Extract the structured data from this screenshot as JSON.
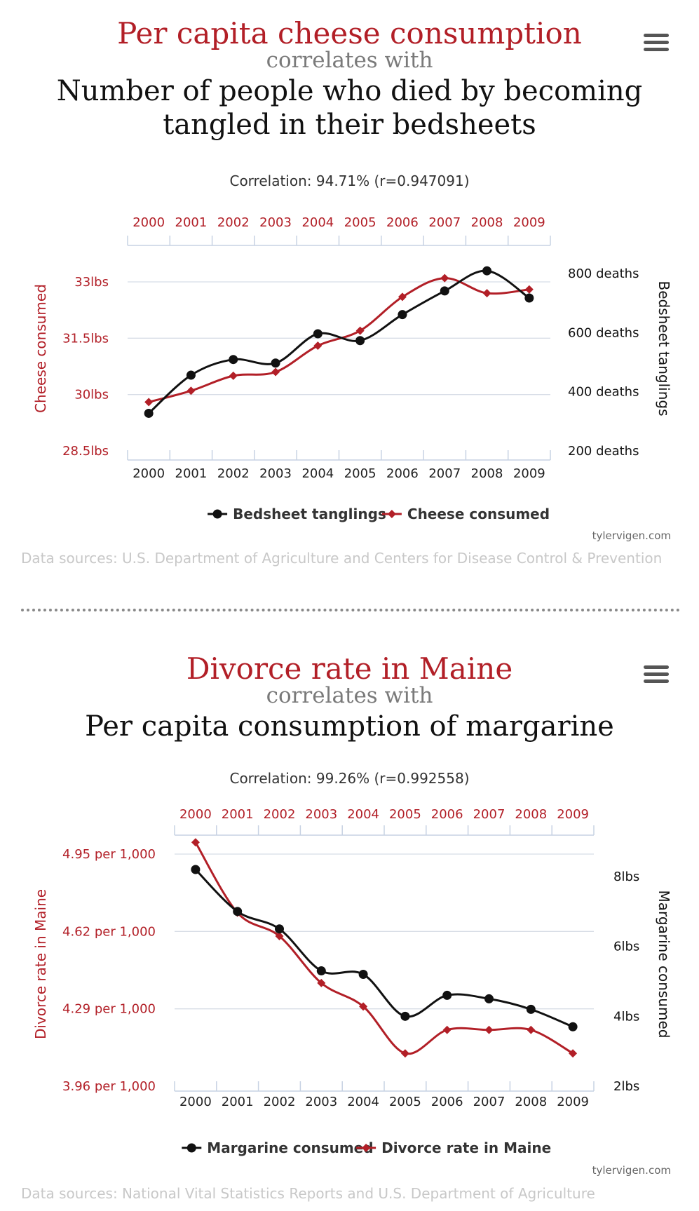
{
  "charts": [
    {
      "title_var1": "Per capita cheese consumption",
      "title_mid": "correlates with",
      "title_var2_line1": "Number of people who died by becoming",
      "title_var2_line2": "tangled in their bedsheets",
      "correlation": "Correlation: 94.71% (r=0.947091)",
      "credit": "tylervigen.com",
      "sources": "Data sources: U.S. Department of Agriculture and Centers for Disease Control & Prevention",
      "menu_icon": "hamburger-menu-icon",
      "colors": {
        "red": "#b21f27",
        "black": "#111111"
      },
      "chart_data": {
        "type": "line",
        "x": [
          2000,
          2001,
          2002,
          2003,
          2004,
          2005,
          2006,
          2007,
          2008,
          2009
        ],
        "series": [
          {
            "name": "Bedsheet tanglings",
            "axis": "right",
            "marker": "circle",
            "color": "#111111",
            "values": [
              327,
              456,
              509,
              497,
              596,
              573,
              661,
              741,
              809,
              717
            ]
          },
          {
            "name": "Cheese consumed",
            "axis": "left",
            "marker": "diamond",
            "color": "#b21f27",
            "values": [
              29.8,
              30.1,
              30.5,
              30.6,
              31.3,
              31.7,
              32.6,
              33.1,
              32.7,
              32.8
            ]
          }
        ],
        "ylabel_left": "Cheese consumed",
        "ylabel_right": "Bedsheet tanglings",
        "yleft_ticks": [
          "28.5lbs",
          "30lbs",
          "31.5lbs",
          "33lbs"
        ],
        "yleft_tick_values": [
          28.5,
          30,
          31.5,
          33
        ],
        "yleft_range": [
          28.5,
          33
        ],
        "yright_ticks": [
          "200 deaths",
          "400 deaths",
          "600 deaths",
          "800 deaths"
        ],
        "yright_tick_values": [
          200,
          400,
          600,
          800
        ],
        "yright_range": [
          200,
          800
        ],
        "x_ticks": [
          "2000",
          "2001",
          "2002",
          "2003",
          "2004",
          "2005",
          "2006",
          "2007",
          "2008",
          "2009"
        ],
        "grid": true,
        "legend_position": "bottom-center"
      }
    },
    {
      "title_var1": "Divorce rate in Maine",
      "title_mid": "correlates with",
      "title_var2_line1": "Per capita consumption of margarine",
      "title_var2_line2": "",
      "correlation": "Correlation: 99.26% (r=0.992558)",
      "credit": "tylervigen.com",
      "sources": "Data sources: National Vital Statistics Reports and U.S. Department of Agriculture",
      "menu_icon": "hamburger-menu-icon",
      "colors": {
        "red": "#b21f27",
        "black": "#111111"
      },
      "chart_data": {
        "type": "line",
        "x": [
          2000,
          2001,
          2002,
          2003,
          2004,
          2005,
          2006,
          2007,
          2008,
          2009
        ],
        "series": [
          {
            "name": "Margarine consumed",
            "axis": "right",
            "marker": "circle",
            "color": "#111111",
            "values": [
              8.2,
              7.0,
              6.5,
              5.3,
              5.2,
              4.0,
              4.6,
              4.5,
              4.2,
              3.7
            ]
          },
          {
            "name": "Divorce rate in Maine",
            "axis": "left",
            "marker": "diamond",
            "color": "#b21f27",
            "values": [
              5.0,
              4.7,
              4.6,
              4.4,
              4.3,
              4.1,
              4.2,
              4.2,
              4.2,
              4.1
            ]
          }
        ],
        "ylabel_left": "Divorce rate in Maine",
        "ylabel_right": "Margarine consumed",
        "yleft_ticks": [
          "3.96 per 1,000",
          "4.29 per 1,000",
          "4.62 per 1,000",
          "4.95 per 1,000"
        ],
        "yleft_tick_values": [
          3.96,
          4.29,
          4.62,
          4.95
        ],
        "yleft_range": [
          3.96,
          4.95
        ],
        "yright_ticks": [
          "2lbs",
          "4lbs",
          "6lbs",
          "8lbs"
        ],
        "yright_tick_values": [
          2,
          4,
          6,
          8
        ],
        "yright_range": [
          2,
          8
        ],
        "x_ticks": [
          "2000",
          "2001",
          "2002",
          "2003",
          "2004",
          "2005",
          "2006",
          "2007",
          "2008",
          "2009"
        ],
        "grid": true,
        "legend_position": "bottom-center"
      }
    }
  ]
}
